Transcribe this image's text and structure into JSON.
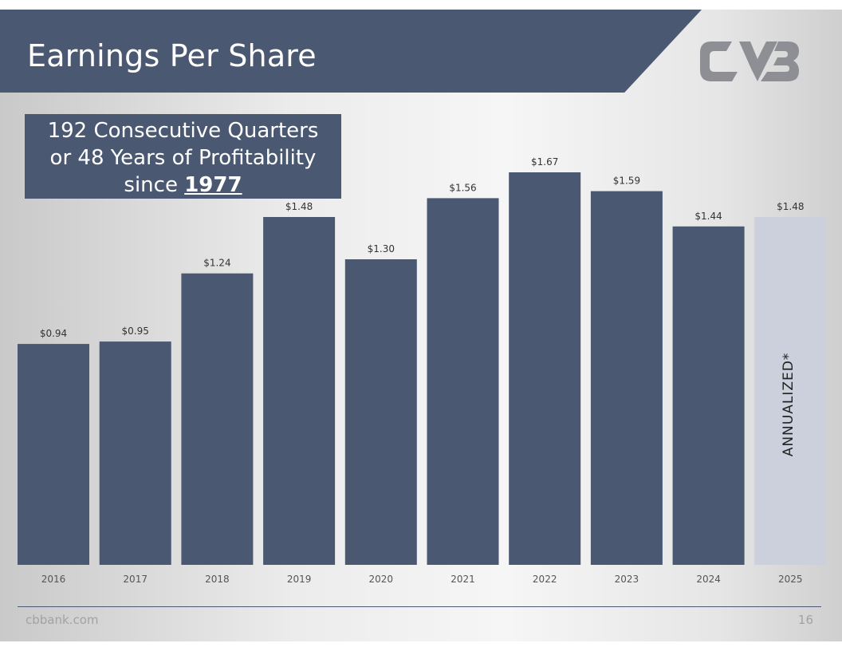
{
  "header": {
    "title": "Earnings Per Share"
  },
  "logo": {
    "icon": "cvb-logo-icon",
    "color": "#8d8f94"
  },
  "callout": {
    "line1": "192 Consecutive Quarters",
    "line2": "or 48 Years of Profitability",
    "line3_prefix": "since ",
    "line3_year": "1977"
  },
  "annotation": {
    "text": "ANNUALIZED*"
  },
  "footer": {
    "url": "cbbank.com",
    "page": "16"
  },
  "colors": {
    "bar": "#4b5872",
    "bar_annualized": "#ccd0dc",
    "band": "#4b5872"
  },
  "chart_data": {
    "type": "bar",
    "title": "Earnings Per Share",
    "categories": [
      "2016",
      "2017",
      "2018",
      "2019",
      "2020",
      "2021",
      "2022",
      "2023",
      "2024",
      "2025"
    ],
    "values": [
      0.94,
      0.95,
      1.24,
      1.48,
      1.3,
      1.56,
      1.67,
      1.59,
      1.44,
      1.48
    ],
    "data_labels": [
      "$0.94",
      "$0.95",
      "$1.24",
      "$1.48",
      "$1.30",
      "$1.56",
      "$1.67",
      "$1.59",
      "$1.44",
      "$1.48"
    ],
    "annualized_category": "2025",
    "xlabel": "",
    "ylabel": "",
    "ylim": [
      0,
      1.67
    ],
    "grid": false,
    "legend": "none"
  }
}
